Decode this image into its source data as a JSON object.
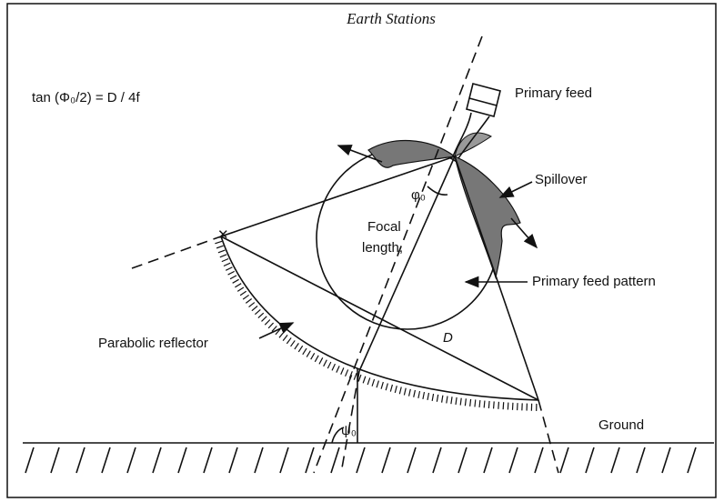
{
  "header": {
    "title": "Earth Stations"
  },
  "formula": "tan (Φ₀/2) = D / 4f",
  "labels": {
    "primary_feed": "Primary feed",
    "spillover": "Spillover",
    "focal_line1": "Focal",
    "focal_line2": "length,",
    "feed_pattern": "Primary feed pattern",
    "reflector": "Parabolic reflector",
    "diameter": "D",
    "ground": "Ground",
    "feed_angle": "φ₀",
    "elevation_angle": "ψ₀"
  }
}
